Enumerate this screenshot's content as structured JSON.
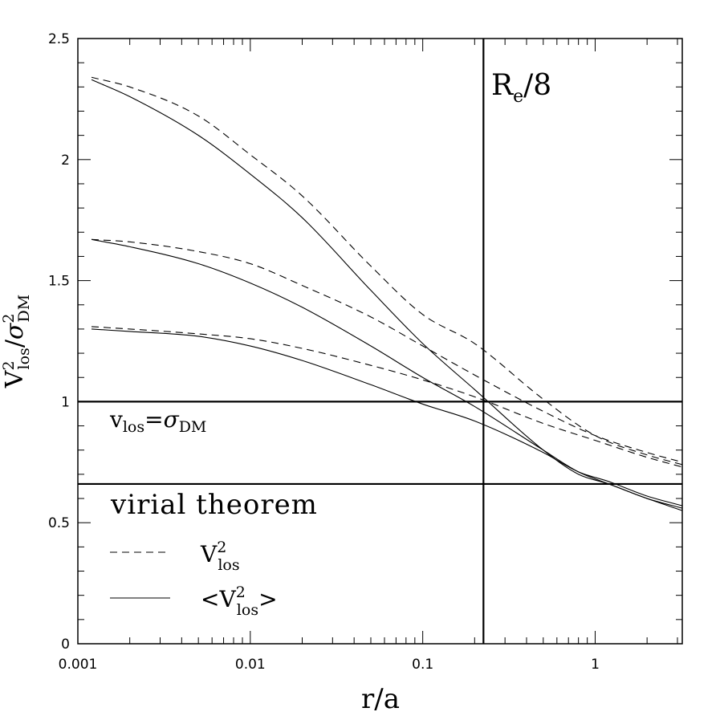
{
  "chart_data": {
    "type": "line",
    "xscale": "log",
    "xlim": [
      0.001,
      3.2
    ],
    "ylim": [
      0,
      2.5
    ],
    "xlabel": "r/a",
    "ylabel": {
      "v": "V",
      "sup": "2",
      "sub": "los",
      "slash": "/",
      "sigma": "σ",
      "sigma_sup": "2",
      "sigma_sub": "DM"
    },
    "x_ticks": [
      {
        "value": 0.001,
        "label": "0.001"
      },
      {
        "value": 0.01,
        "label": "0.01"
      },
      {
        "value": 0.1,
        "label": "0.1"
      },
      {
        "value": 1,
        "label": "1"
      }
    ],
    "y_ticks": [
      {
        "value": 0,
        "label": "0"
      },
      {
        "value": 0.5,
        "label": "0.5"
      },
      {
        "value": 1,
        "label": "1"
      },
      {
        "value": 1.5,
        "label": "1.5"
      },
      {
        "value": 2,
        "label": "2"
      },
      {
        "value": 2.5,
        "label": "2.5"
      }
    ],
    "hlines": [
      {
        "y": 1.0
      },
      {
        "y": 0.66
      }
    ],
    "vlines": [
      {
        "x": 0.225
      }
    ],
    "annotations": {
      "re8": {
        "R": "R",
        "sub": "e",
        "rest": "/8"
      },
      "vlos_sigma": {
        "v": "v",
        "sub": "los",
        "eq": "=",
        "sigma": "σ",
        "sigma_sub": "DM"
      },
      "virial": "virial theorem"
    },
    "legend": {
      "position": "bottom-left",
      "entries": [
        {
          "style": "dashed",
          "v": "V",
          "sup": "2",
          "sub": "los"
        },
        {
          "style": "solid",
          "lt": "<",
          "v": "V",
          "sup": "2",
          "sub": "los",
          "gt": ">"
        }
      ]
    },
    "series": [
      {
        "style": "dashed",
        "x": [
          0.0012,
          0.002,
          0.005,
          0.01,
          0.02,
          0.05,
          0.1,
          0.2,
          0.5,
          1,
          2,
          3.2
        ],
        "y": [
          2.34,
          2.3,
          2.18,
          2.02,
          1.85,
          1.56,
          1.36,
          1.24,
          1.01,
          0.86,
          0.78,
          0.74
        ]
      },
      {
        "style": "solid",
        "x": [
          0.0012,
          0.002,
          0.005,
          0.01,
          0.02,
          0.05,
          0.1,
          0.2,
          0.5,
          0.8,
          1.2,
          2,
          3.2
        ],
        "y": [
          2.33,
          2.26,
          2.1,
          1.94,
          1.76,
          1.46,
          1.24,
          1.05,
          0.8,
          0.7,
          0.66,
          0.6,
          0.56
        ]
      },
      {
        "style": "dashed",
        "x": [
          0.0012,
          0.002,
          0.005,
          0.01,
          0.02,
          0.05,
          0.1,
          0.2,
          0.5,
          1,
          2,
          3.2
        ],
        "y": [
          1.67,
          1.66,
          1.62,
          1.57,
          1.48,
          1.35,
          1.23,
          1.11,
          0.96,
          0.86,
          0.79,
          0.75
        ]
      },
      {
        "style": "solid",
        "x": [
          0.0012,
          0.002,
          0.005,
          0.01,
          0.02,
          0.05,
          0.1,
          0.2,
          0.5,
          0.8,
          1.2,
          2,
          3.2
        ],
        "y": [
          1.67,
          1.64,
          1.57,
          1.49,
          1.39,
          1.23,
          1.1,
          0.98,
          0.8,
          0.71,
          0.66,
          0.6,
          0.55
        ]
      },
      {
        "style": "dashed",
        "x": [
          0.0012,
          0.002,
          0.005,
          0.01,
          0.02,
          0.05,
          0.1,
          0.2,
          0.5,
          1,
          2,
          3.2
        ],
        "y": [
          1.31,
          1.3,
          1.28,
          1.26,
          1.22,
          1.15,
          1.09,
          1.02,
          0.91,
          0.84,
          0.77,
          0.73
        ]
      },
      {
        "style": "solid",
        "x": [
          0.0012,
          0.002,
          0.005,
          0.01,
          0.02,
          0.05,
          0.1,
          0.2,
          0.5,
          0.8,
          1.2,
          2,
          3.2
        ],
        "y": [
          1.3,
          1.29,
          1.27,
          1.23,
          1.17,
          1.07,
          0.99,
          0.92,
          0.79,
          0.71,
          0.67,
          0.61,
          0.57
        ]
      }
    ]
  }
}
